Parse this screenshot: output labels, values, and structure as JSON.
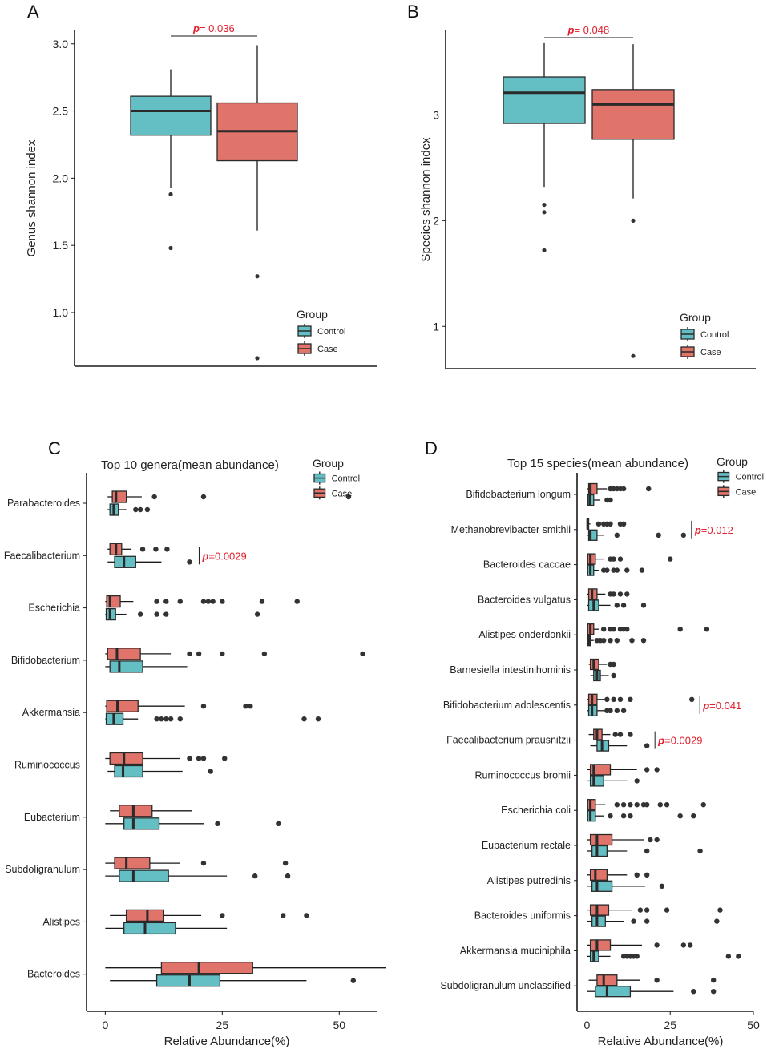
{
  "colors": {
    "control": "#63bfc4",
    "case": "#e0736a",
    "pvalue": "#e0202e"
  },
  "chart_data": [
    {
      "panel": "A",
      "type": "box",
      "ylabel": "Genus shannon index",
      "xlabel": "",
      "ylim": [
        0.6,
        3.1
      ],
      "yticks": [
        1.0,
        1.5,
        2.0,
        2.5,
        3.0
      ],
      "ytick_labels": [
        "1.0",
        "1.5",
        "2.0",
        "2.5",
        "3.0"
      ],
      "legend": {
        "title": "Group",
        "entries": [
          "Control",
          "Case"
        ]
      },
      "pvalue": "= 0.036",
      "p_symbol": "p",
      "series": [
        {
          "name": "Control",
          "whisker_low": 1.93,
          "q1": 2.32,
          "median": 2.5,
          "q3": 2.61,
          "whisker_high": 2.81,
          "outliers": [
            1.88,
            1.48
          ]
        },
        {
          "name": "Case",
          "whisker_low": 1.61,
          "q1": 2.13,
          "median": 2.35,
          "q3": 2.56,
          "whisker_high": 2.99,
          "outliers": [
            1.27,
            0.66
          ]
        }
      ]
    },
    {
      "panel": "B",
      "type": "box",
      "ylabel": "Species shannon index",
      "xlabel": "",
      "ylim": [
        0.6,
        3.8
      ],
      "yticks": [
        1,
        2,
        3
      ],
      "ytick_labels": [
        "1",
        "2",
        "3"
      ],
      "legend": {
        "title": "Group",
        "entries": [
          "Control",
          "Case"
        ]
      },
      "pvalue": "= 0.048",
      "p_symbol": "p",
      "series": [
        {
          "name": "Control",
          "whisker_low": 2.32,
          "q1": 2.92,
          "median": 3.21,
          "q3": 3.36,
          "whisker_high": 3.68,
          "outliers": [
            2.15,
            2.08,
            1.72
          ]
        },
        {
          "name": "Case",
          "whisker_low": 2.21,
          "q1": 2.77,
          "median": 3.1,
          "q3": 3.24,
          "whisker_high": 3.67,
          "outliers": [
            2.0,
            0.72
          ]
        }
      ]
    },
    {
      "panel": "C",
      "type": "horizontal-box",
      "title": "Top 10 genera(mean abundance)",
      "xlabel": "Relative Abundance(%)",
      "xlim": [
        -4,
        58
      ],
      "xticks": [
        0,
        25,
        50
      ],
      "xtick_labels": [
        "0",
        "25",
        "50"
      ],
      "legend": {
        "title": "Group",
        "entries": [
          "Control",
          "Case"
        ]
      },
      "categories": [
        "Parabacteroides",
        "Faecalibacterium",
        "Escherichia",
        "Bifidobacterium",
        "Akkermansia",
        "Ruminococcus",
        "Eubacterium",
        "Subdoligranulum",
        "Alistipes",
        "Bacteroides"
      ],
      "pvalues": [
        {
          "category": "Faecalibacterium",
          "p_symbol": "p",
          "text": "=0.0029"
        }
      ],
      "series": [
        {
          "name": "Case",
          "boxes": [
            [
              0.5,
              1.5,
              2.3,
              4.5,
              7.8,
              [
                10.5,
                21,
                52
              ]
            ],
            [
              0.5,
              1,
              2.3,
              3.5,
              5.6,
              [
                8,
                10.8,
                13.2
              ]
            ],
            [
              0,
              0.3,
              1,
              3.2,
              6,
              [
                11,
                13,
                16,
                21,
                22,
                23,
                25,
                33.5,
                41
              ]
            ],
            [
              0,
              0.5,
              2.5,
              7.5,
              14,
              [
                18,
                20,
                25,
                34,
                55
              ]
            ],
            [
              0,
              0.3,
              2.6,
              7,
              17,
              [
                21,
                30,
                31
              ]
            ],
            [
              0,
              1,
              4,
              8,
              16,
              [
                18,
                20,
                21,
                25.5
              ]
            ],
            [
              1,
              3,
              6,
              10,
              18.5,
              []
            ],
            [
              0,
              2,
              4.5,
              9.5,
              16,
              [
                21,
                38.5
              ]
            ],
            [
              1,
              4.5,
              9,
              12.5,
              20.5,
              [
                25,
                38,
                43
              ]
            ],
            [
              0,
              12,
              20,
              31.5,
              60,
              []
            ]
          ]
        },
        {
          "name": "Control",
          "boxes": [
            [
              0.5,
              1,
              1.8,
              2.8,
              4.5,
              [
                6.5,
                7.5,
                9
              ]
            ],
            [
              0.5,
              2,
              4,
              6.5,
              12,
              [
                18
              ]
            ],
            [
              0,
              0.2,
              1,
              2.2,
              4.5,
              [
                7.5,
                11,
                13,
                32.5
              ]
            ],
            [
              0,
              1,
              3,
              8,
              17.5,
              []
            ],
            [
              0,
              0.2,
              1.8,
              3.8,
              7,
              [
                11,
                12,
                13,
                14,
                16,
                42.5,
                45.5
              ]
            ],
            [
              0.5,
              2,
              3.8,
              8,
              16.5,
              [
                22.5
              ]
            ],
            [
              0,
              4,
              6,
              11.5,
              21,
              [
                24,
                37
              ]
            ],
            [
              0,
              3,
              6,
              13.5,
              26,
              [
                32,
                39
              ]
            ],
            [
              0,
              4,
              8.5,
              15,
              26,
              []
            ],
            [
              1,
              11,
              18,
              24.5,
              43,
              [
                53
              ]
            ]
          ]
        }
      ]
    },
    {
      "panel": "D",
      "type": "horizontal-box",
      "title": "Top 15 species(mean abundance)",
      "xlabel": "Relative Abundance(%)",
      "xlim": [
        -3,
        50
      ],
      "xticks": [
        0,
        25,
        50
      ],
      "xtick_labels": [
        "0",
        "25",
        "50"
      ],
      "legend": {
        "title": "Group",
        "entries": [
          "Control",
          "Case"
        ]
      },
      "categories": [
        "Bifidobacterium longum",
        "Methanobrevibacter smithii",
        "Bacteroides caccae",
        "Bacteroides vulgatus",
        "Alistipes onderdonkii",
        "Barnesiella intestinihominis",
        "Bifidobacterium adolescentis",
        "Faecalibacterium prausnitzii",
        "Ruminococcus bromii",
        "Escherichia coli",
        "Eubacterium rectale",
        "Alistipes putredinis",
        "Bacteroides uniformis",
        "Akkermansia muciniphila",
        "Subdoligranulum unclassified"
      ],
      "pvalues": [
        {
          "category": "Methanobrevibacter smithii",
          "p_symbol": "p",
          "text": "=0.012"
        },
        {
          "category": "Bifidobacterium adolescentis",
          "p_symbol": "p",
          "text": "=0.041"
        },
        {
          "category": "Faecalibacterium prausnitzii",
          "p_symbol": "p",
          "text": "=0.0029"
        }
      ],
      "series": [
        {
          "name": "Case",
          "boxes": [
            [
              0,
              0.5,
              1,
              3,
              6,
              [
                7,
                8,
                9,
                10,
                11,
                18.5
              ]
            ],
            [
              0,
              0,
              0.2,
              0.5,
              1,
              [
                3.5,
                5,
                6,
                7,
                10,
                11
              ]
            ],
            [
              0,
              0.2,
              1,
              2.5,
              5,
              [
                7,
                8,
                10,
                25
              ]
            ],
            [
              0,
              0.5,
              1.5,
              3,
              5.5,
              [
                7,
                8,
                10,
                12
              ]
            ],
            [
              0,
              0.2,
              1,
              2,
              3.5,
              [
                5,
                7,
                8,
                10,
                11,
                12,
                28,
                36
              ]
            ],
            [
              0.5,
              1,
              2,
              3.5,
              6,
              [
                7,
                8
              ]
            ],
            [
              0,
              0.5,
              1.5,
              3,
              5.5,
              [
                6,
                8,
                10,
                13,
                31.5
              ]
            ],
            [
              0.5,
              2,
              3,
              4.5,
              7,
              [
                8.5,
                10,
                13
              ]
            ],
            [
              0,
              1,
              2,
              7,
              15,
              [
                18,
                21
              ]
            ],
            [
              0,
              0.2,
              1,
              2.5,
              5.5,
              [
                9,
                11,
                13,
                15,
                17,
                18,
                22,
                24,
                35
              ]
            ],
            [
              0,
              1,
              3,
              7.5,
              17,
              [
                19,
                21
              ]
            ],
            [
              0,
              1,
              2.5,
              6,
              12,
              [
                15,
                18
              ]
            ],
            [
              0,
              1,
              3,
              6.5,
              13.5,
              [
                16,
                18,
                24,
                40
              ]
            ],
            [
              0,
              1,
              3,
              7,
              16.5,
              [
                21,
                29,
                31
              ]
            ],
            [
              0.5,
              3,
              5,
              9,
              16,
              [
                21,
                38
              ]
            ]
          ]
        },
        {
          "name": "Control",
          "boxes": [
            [
              0,
              0.2,
              0.8,
              2,
              4,
              [
                6,
                7
              ]
            ],
            [
              0,
              0.5,
              1,
              3,
              5,
              [
                9,
                21.5,
                29
              ]
            ],
            [
              0,
              0.2,
              1,
              2,
              3.5,
              [
                5,
                6,
                8,
                9,
                12,
                16.5
              ]
            ],
            [
              0,
              0.5,
              2,
              3.5,
              7,
              [
                9,
                11,
                17
              ]
            ],
            [
              0,
              0.2,
              0.5,
              1,
              2,
              [
                3,
                4,
                5,
                7,
                9,
                13.5,
                17
              ]
            ],
            [
              1,
              2,
              3,
              4,
              6.5,
              [
                8
              ]
            ],
            [
              0,
              0.5,
              1.5,
              3,
              5.5,
              [
                6,
                7,
                9,
                11
              ]
            ],
            [
              1,
              3,
              4.5,
              6.5,
              12,
              [
                18
              ]
            ],
            [
              0,
              1,
              2,
              5,
              12,
              [
                15
              ]
            ],
            [
              0,
              0.2,
              1,
              2.5,
              5,
              [
                7,
                11,
                13,
                28,
                32
              ]
            ],
            [
              0,
              1.5,
              3,
              6,
              12,
              [
                18,
                34
              ]
            ],
            [
              0,
              1.5,
              3,
              7.5,
              17.5,
              [
                22.5
              ]
            ],
            [
              0,
              1.5,
              3,
              5.5,
              11,
              [
                14,
                18,
                39
              ]
            ],
            [
              0,
              1,
              2,
              3.5,
              7,
              [
                11,
                12,
                13,
                14,
                15,
                42.5,
                45.5
              ]
            ],
            [
              0,
              2.5,
              6,
              13,
              26,
              [
                32,
                38
              ]
            ]
          ]
        }
      ]
    }
  ]
}
